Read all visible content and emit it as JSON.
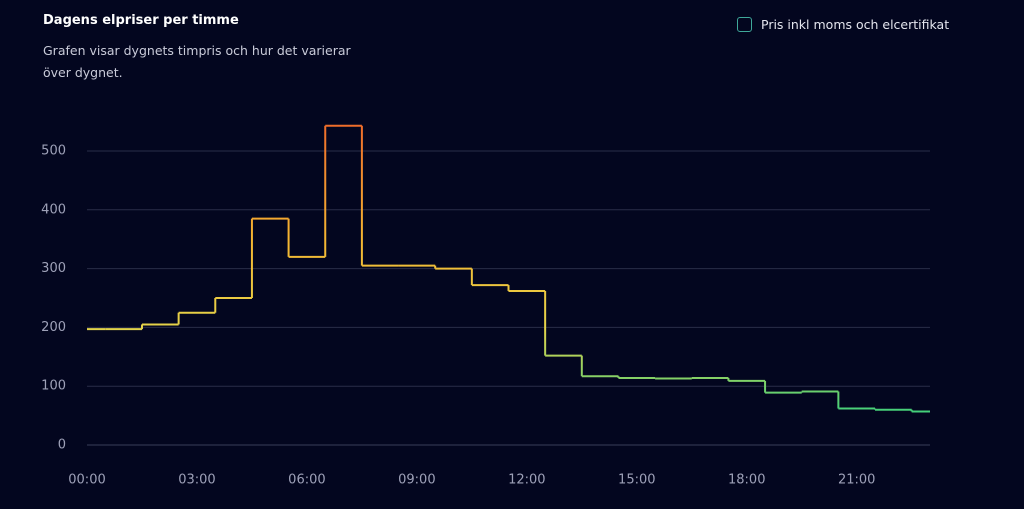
{
  "chart_data": {
    "type": "step",
    "title": "Dagens elpriser per timme",
    "subtitle": "Grafen visar dygnets timpris och hur det varierar över dygnet.",
    "legend_label": "Pris inkl moms och elcertifikat",
    "x": [
      0,
      1,
      2,
      3,
      4,
      5,
      6,
      7,
      8,
      9,
      10,
      11,
      12,
      13,
      14,
      15,
      16,
      17,
      18,
      19,
      20,
      21,
      22,
      23
    ],
    "values": [
      197,
      197,
      205,
      225,
      250,
      385,
      320,
      543,
      305,
      305,
      300,
      272,
      262,
      152,
      117,
      114,
      113,
      114,
      109,
      89,
      91,
      62,
      60,
      57
    ],
    "xlim": [
      0,
      23
    ],
    "xticks": [
      {
        "value": 0,
        "label": "00:00"
      },
      {
        "value": 3,
        "label": "03:00"
      },
      {
        "value": 6,
        "label": "06:00"
      },
      {
        "value": 9,
        "label": "09:00"
      },
      {
        "value": 12,
        "label": "12:00"
      },
      {
        "value": 15,
        "label": "15:00"
      },
      {
        "value": 18,
        "label": "18:00"
      },
      {
        "value": 21,
        "label": "21:00"
      }
    ],
    "ylim": [
      0,
      550
    ],
    "yticks": [
      0,
      100,
      200,
      300,
      400,
      500
    ],
    "grid": true,
    "color_scale": [
      {
        "value": 50,
        "color": "#3ccf7c"
      },
      {
        "value": 200,
        "color": "#e6d44a"
      },
      {
        "value": 350,
        "color": "#f5b531"
      },
      {
        "value": 550,
        "color": "#ef6a2a"
      }
    ]
  }
}
